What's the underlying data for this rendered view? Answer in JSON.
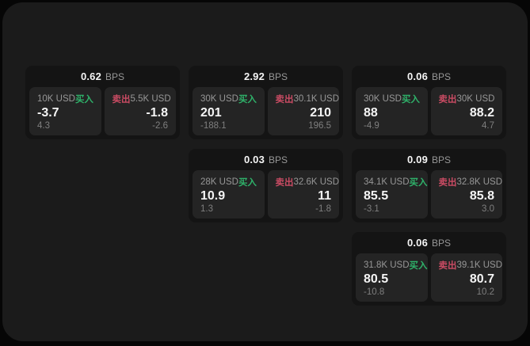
{
  "theme": {
    "outer_bg": "#060606",
    "panel_bg": "#1b1b1b",
    "card_bg": "#141414",
    "tile_bg": "#242424",
    "buy_color": "#2fb26a",
    "sell_color": "#c94b63",
    "text_primary": "#f5f5f5",
    "text_secondary": "#979797",
    "text_tertiary": "#7f7f7f"
  },
  "labels": {
    "buy": "买入",
    "sell": "卖出",
    "bps_unit": "BPS"
  },
  "cards": [
    {
      "bps": "0.62",
      "buy": {
        "size": "10K USD",
        "value": "-3.7",
        "delta": "4.3"
      },
      "sell": {
        "size": "5.5K USD",
        "value": "-1.8",
        "delta": "-2.6"
      }
    },
    {
      "bps": "2.92",
      "buy": {
        "size": "30K USD",
        "value": "201",
        "delta": "-188.1"
      },
      "sell": {
        "size": "30.1K USD",
        "value": "210",
        "delta": "196.5"
      }
    },
    {
      "bps": "0.06",
      "buy": {
        "size": "30K USD",
        "value": "88",
        "delta": "-4.9"
      },
      "sell": {
        "size": "30K USD",
        "value": "88.2",
        "delta": "4.7"
      }
    },
    {
      "bps": "0.03",
      "buy": {
        "size": "28K USD",
        "value": "10.9",
        "delta": "1.3"
      },
      "sell": {
        "size": "32.6K USD",
        "value": "11",
        "delta": "-1.8"
      }
    },
    {
      "bps": "0.09",
      "buy": {
        "size": "34.1K USD",
        "value": "85.5",
        "delta": "-3.1"
      },
      "sell": {
        "size": "32.8K USD",
        "value": "85.8",
        "delta": "3.0"
      }
    },
    {
      "bps": "0.06",
      "buy": {
        "size": "31.8K USD",
        "value": "80.5",
        "delta": "-10.8"
      },
      "sell": {
        "size": "39.1K USD",
        "value": "80.7",
        "delta": "10.2"
      }
    }
  ]
}
